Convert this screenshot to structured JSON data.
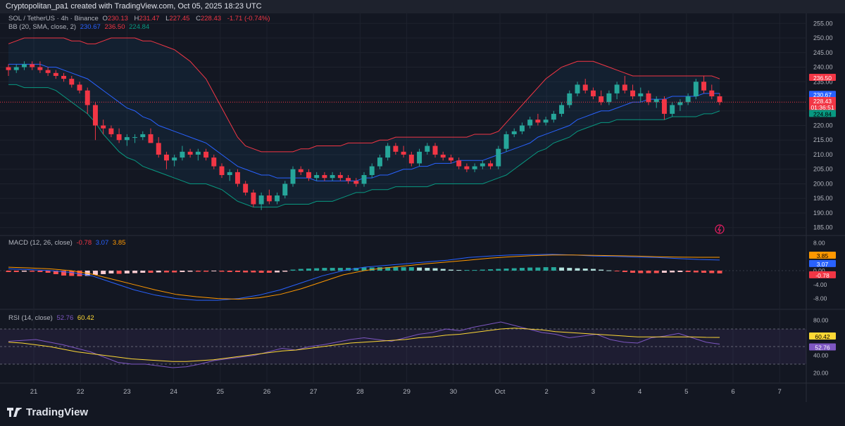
{
  "header": {
    "title": "Cryptopolitan_pa1 created with TradingView.com, Oct 05, 2025 18:23 UTC"
  },
  "main_legend": {
    "symbol": "SOL / TetherUS · 4h · Binance",
    "o_label": "O",
    "o": "230.13",
    "h_label": "H",
    "h": "231.47",
    "l_label": "L",
    "l": "227.45",
    "c_label": "C",
    "c": "228.43",
    "change": "-1.71 (-0.74%)"
  },
  "bb_legend": {
    "label": "BB (20, SMA, close, 2)",
    "basis": "230.67",
    "upper": "236.50",
    "lower": "224.84"
  },
  "macd_legend": {
    "label": "MACD (12, 26, close)",
    "hist": "-0.78",
    "macd": "3.07",
    "signal": "3.85"
  },
  "rsi_legend": {
    "label": "RSI (14, close)",
    "rsi": "52.76",
    "ma": "60.42"
  },
  "price_axis": {
    "ticks": [
      "255.00",
      "250.00",
      "245.00",
      "240.00",
      "235.00",
      "230.00",
      "225.00",
      "220.00",
      "215.00",
      "210.00",
      "205.00",
      "200.00",
      "195.00",
      "190.00",
      "185.00"
    ]
  },
  "price_tags": {
    "upper": "236.50",
    "basis": "230.67",
    "close": "228.43",
    "countdown": "01:36:51",
    "lower": "224.84"
  },
  "macd_axis": {
    "ticks": [
      "8.00",
      "4.00",
      "0.00",
      "-4.00",
      "-8.00"
    ]
  },
  "macd_tags": {
    "signal": "3.85",
    "macd": "3.07",
    "hist": "-0.78"
  },
  "rsi_axis": {
    "ticks": [
      "80.00",
      "40.00",
      "20.00"
    ]
  },
  "rsi_tags": {
    "ma": "60.42",
    "rsi": "52.76"
  },
  "time_axis": {
    "labels": [
      "21",
      "22",
      "23",
      "24",
      "25",
      "26",
      "27",
      "28",
      "29",
      "30",
      "Oct",
      "2",
      "3",
      "4",
      "5",
      "6",
      "7"
    ]
  },
  "logo": {
    "text": "TradingView"
  },
  "colors": {
    "up": "#26a69a",
    "down": "#f23645",
    "bb_basis": "#2962ff",
    "bb_upper": "#f23645",
    "bb_lower": "#089981",
    "macd": "#2962ff",
    "signal": "#ff9800",
    "rsi": "#7e57c2",
    "rsi_ma": "#fdd835"
  },
  "chart_data": {
    "type": "candlestick",
    "price_range": [
      183,
      257
    ],
    "candles": [
      [
        240,
        241,
        237,
        239
      ],
      [
        239,
        241,
        238,
        240
      ],
      [
        240,
        242,
        239,
        241
      ],
      [
        241,
        242,
        239,
        240
      ],
      [
        240,
        242,
        238,
        239
      ],
      [
        239,
        240,
        237,
        238
      ],
      [
        238,
        239,
        236,
        237
      ],
      [
        237,
        238,
        235,
        236
      ],
      [
        236,
        237,
        233,
        234
      ],
      [
        234,
        235,
        231,
        232
      ],
      [
        232,
        233,
        224,
        227
      ],
      [
        227,
        228,
        215,
        220
      ],
      [
        220,
        222,
        217,
        219
      ],
      [
        219,
        220,
        216,
        217
      ],
      [
        217,
        219,
        214,
        215
      ],
      [
        215,
        217,
        213,
        216
      ],
      [
        216,
        217,
        214,
        216
      ],
      [
        216,
        218,
        215,
        217
      ],
      [
        217,
        219,
        214,
        214
      ],
      [
        214,
        216,
        209,
        210
      ],
      [
        210,
        211,
        205,
        208
      ],
      [
        208,
        210,
        206,
        209
      ],
      [
        209,
        213,
        208,
        211
      ],
      [
        211,
        212,
        209,
        210
      ],
      [
        210,
        212,
        208,
        211
      ],
      [
        211,
        212,
        208,
        209
      ],
      [
        209,
        210,
        205,
        206
      ],
      [
        206,
        207,
        202,
        203
      ],
      [
        203,
        205,
        201,
        204
      ],
      [
        204,
        205,
        199,
        200
      ],
      [
        200,
        201,
        196,
        197
      ],
      [
        197,
        198,
        192,
        193
      ],
      [
        193,
        197,
        191,
        196
      ],
      [
        196,
        198,
        193,
        194
      ],
      [
        194,
        197,
        193,
        196
      ],
      [
        196,
        201,
        195,
        200
      ],
      [
        200,
        206,
        199,
        205
      ],
      [
        205,
        206,
        203,
        204
      ],
      [
        204,
        205,
        201,
        202
      ],
      [
        202,
        204,
        201,
        203
      ],
      [
        203,
        204,
        201,
        202
      ],
      [
        202,
        204,
        201,
        203
      ],
      [
        203,
        204,
        201,
        202
      ],
      [
        202,
        203,
        200,
        201
      ],
      [
        201,
        202,
        199,
        200
      ],
      [
        200,
        204,
        199,
        203
      ],
      [
        203,
        207,
        202,
        206
      ],
      [
        206,
        210,
        205,
        209
      ],
      [
        209,
        214,
        208,
        213
      ],
      [
        213,
        214,
        210,
        211
      ],
      [
        211,
        213,
        209,
        210
      ],
      [
        210,
        211,
        206,
        207
      ],
      [
        207,
        212,
        206,
        211
      ],
      [
        211,
        214,
        210,
        213
      ],
      [
        213,
        214,
        209,
        210
      ],
      [
        210,
        211,
        208,
        209
      ],
      [
        209,
        210,
        207,
        208
      ],
      [
        208,
        209,
        205,
        206
      ],
      [
        206,
        207,
        204,
        205
      ],
      [
        205,
        207,
        204,
        206
      ],
      [
        206,
        208,
        205,
        207
      ],
      [
        207,
        208,
        205,
        206
      ],
      [
        206,
        213,
        205,
        212
      ],
      [
        212,
        218,
        211,
        217
      ],
      [
        217,
        219,
        216,
        218
      ],
      [
        218,
        221,
        217,
        220
      ],
      [
        220,
        223,
        219,
        222
      ],
      [
        222,
        224,
        220,
        221
      ],
      [
        221,
        223,
        220,
        222
      ],
      [
        222,
        225,
        221,
        224
      ],
      [
        224,
        228,
        223,
        227
      ],
      [
        227,
        232,
        226,
        231
      ],
      [
        231,
        235,
        230,
        234
      ],
      [
        234,
        236,
        231,
        232
      ],
      [
        232,
        233,
        229,
        230
      ],
      [
        230,
        232,
        227,
        228
      ],
      [
        228,
        232,
        227,
        231
      ],
      [
        231,
        235,
        229,
        234
      ],
      [
        234,
        237,
        231,
        232
      ],
      [
        232,
        234,
        229,
        230
      ],
      [
        230,
        233,
        228,
        231
      ],
      [
        231,
        232,
        227,
        228
      ],
      [
        228,
        230,
        226,
        229
      ],
      [
        229,
        230,
        222,
        224
      ],
      [
        224,
        228,
        223,
        227
      ],
      [
        227,
        229,
        225,
        228
      ],
      [
        228,
        231,
        227,
        230
      ],
      [
        230,
        236,
        229,
        235
      ],
      [
        235,
        237,
        231,
        232
      ],
      [
        232,
        234,
        229,
        230
      ],
      [
        230,
        231,
        227,
        228
      ]
    ],
    "bb_upper": [
      248,
      249,
      250,
      250,
      250,
      250,
      250,
      250,
      249,
      249,
      248,
      248,
      249,
      250,
      250,
      250,
      250,
      249,
      249,
      248,
      247,
      246,
      244,
      242,
      239,
      236,
      231,
      226,
      221,
      216,
      213,
      212,
      211,
      211,
      211,
      211,
      211,
      212,
      212,
      213,
      213,
      213,
      213,
      214,
      214,
      214,
      214,
      215,
      215,
      216,
      216,
      216,
      216,
      216,
      216,
      216,
      216,
      216,
      216,
      217,
      217,
      217,
      218,
      221,
      224,
      227,
      230,
      233,
      236,
      238,
      240,
      241,
      242,
      242,
      242,
      241,
      240,
      239,
      238,
      237,
      237,
      237,
      237,
      237,
      237,
      237,
      237,
      237,
      237,
      237,
      236
    ],
    "bb_basis": [
      241,
      241,
      241,
      241,
      241,
      240,
      240,
      239,
      238,
      237,
      236,
      234,
      232,
      230,
      228,
      226,
      225,
      223,
      222,
      220,
      219,
      218,
      217,
      216,
      215,
      214,
      212,
      210,
      208,
      206,
      205,
      204,
      203,
      203,
      202,
      202,
      202,
      202,
      202,
      201,
      201,
      201,
      201,
      201,
      201,
      202,
      202,
      203,
      203,
      204,
      205,
      205,
      206,
      206,
      207,
      207,
      207,
      208,
      208,
      208,
      208,
      209,
      210,
      211,
      212,
      213,
      214,
      216,
      217,
      218,
      219,
      220,
      222,
      223,
      224,
      225,
      225,
      226,
      227,
      228,
      228,
      229,
      229,
      229,
      230,
      230,
      230,
      230,
      231,
      231,
      231
    ],
    "bb_lower": [
      234,
      234,
      233,
      233,
      233,
      233,
      232,
      230,
      228,
      226,
      224,
      221,
      217,
      214,
      211,
      209,
      208,
      206,
      205,
      204,
      203,
      202,
      201,
      200,
      200,
      200,
      199,
      198,
      196,
      194,
      193,
      192,
      192,
      192,
      192,
      193,
      193,
      193,
      193,
      194,
      194,
      194,
      195,
      196,
      197,
      197,
      198,
      198,
      198,
      199,
      199,
      199,
      199,
      199,
      200,
      200,
      200,
      200,
      200,
      200,
      200,
      201,
      202,
      203,
      205,
      207,
      209,
      211,
      212,
      214,
      215,
      216,
      218,
      219,
      220,
      221,
      221,
      222,
      222,
      222,
      222,
      222,
      222,
      222,
      223,
      223,
      223,
      223,
      224,
      224,
      225
    ],
    "macd": [
      0.5,
      0.3,
      0,
      -0.5,
      -1.5,
      -3.5,
      -5.5,
      -7,
      -8,
      -8.5,
      -8.5,
      -8,
      -7,
      -5.5,
      -3.5,
      -1.5,
      0,
      1,
      1.5,
      2,
      2.5,
      3,
      3.8,
      4.2,
      4.5,
      4.6,
      4.7,
      4.5,
      4.2,
      4.1,
      3.9,
      3.8,
      3.5,
      3.2,
      3.07
    ],
    "signal": [
      1,
      0.8,
      0.5,
      0,
      -1,
      -2.5,
      -4,
      -5.5,
      -6.8,
      -7.5,
      -8,
      -8.2,
      -7.8,
      -6.8,
      -5.2,
      -3.2,
      -1.2,
      0,
      0.8,
      1.4,
      2,
      2.5,
      3,
      3.6,
      4,
      4.3,
      4.5,
      4.5,
      4.4,
      4.3,
      4.2,
      4,
      3.9,
      3.85,
      3.85
    ],
    "macd_hist": [
      -0.4,
      -0.4,
      -0.3,
      -0.3,
      -0.4,
      -0.6,
      -1,
      -1.4,
      -1.5,
      -1.6,
      -1.5,
      -1.2,
      -1,
      -0.8,
      -0.9,
      -0.8,
      -0.7,
      -0.6,
      -0.6,
      -0.5,
      -0.5,
      -0.5,
      -0.4,
      -0.3,
      -0.3,
      -0.3,
      -0.2,
      -0.3,
      -0.4,
      -0.4,
      -0.5,
      -0.5,
      -0.6,
      -0.6,
      -0.5,
      -0.3,
      0.3,
      0.5,
      0.6,
      0.7,
      0.8,
      0.8,
      0.8,
      0.8,
      0.8,
      0.9,
      0.9,
      1,
      1,
      1,
      1,
      1,
      0.9,
      0.8,
      0.7,
      0.5,
      0.3,
      0.2,
      0.2,
      0.2,
      0.3,
      0.4,
      0.5,
      0.6,
      0.7,
      0.8,
      0.9,
      0.9,
      1,
      1,
      0.9,
      0.8,
      0.7,
      0.6,
      0.5,
      0.3,
      0.1,
      -0.2,
      -0.4,
      -0.6,
      -0.7,
      -0.7,
      -0.7,
      -0.6,
      -0.5,
      -0.4,
      -0.4,
      -0.5,
      -0.6,
      -0.7,
      -0.78
    ],
    "rsi": [
      56,
      57,
      58,
      55,
      52,
      48,
      44,
      38,
      32,
      30,
      30,
      28,
      26,
      27,
      30,
      34,
      36,
      38,
      40,
      44,
      48,
      46,
      50,
      52,
      55,
      58,
      60,
      58,
      56,
      60,
      64,
      66,
      70,
      68,
      72,
      75,
      78,
      74,
      70,
      66,
      64,
      60,
      62,
      64,
      58,
      55,
      54,
      60,
      62,
      65,
      60,
      55,
      52.76
    ],
    "rsi_ma": [
      55,
      54,
      52,
      50,
      47,
      44,
      42,
      40,
      38,
      36,
      35,
      34,
      33,
      33,
      34,
      35,
      37,
      39,
      41,
      43,
      45,
      46,
      48,
      50,
      52,
      54,
      55,
      56,
      57,
      58,
      60,
      61,
      63,
      64,
      66,
      68,
      70,
      71,
      70,
      69,
      67,
      66,
      65,
      64,
      63,
      62,
      61,
      61,
      61,
      61,
      61,
      60.5,
      60.42
    ]
  }
}
